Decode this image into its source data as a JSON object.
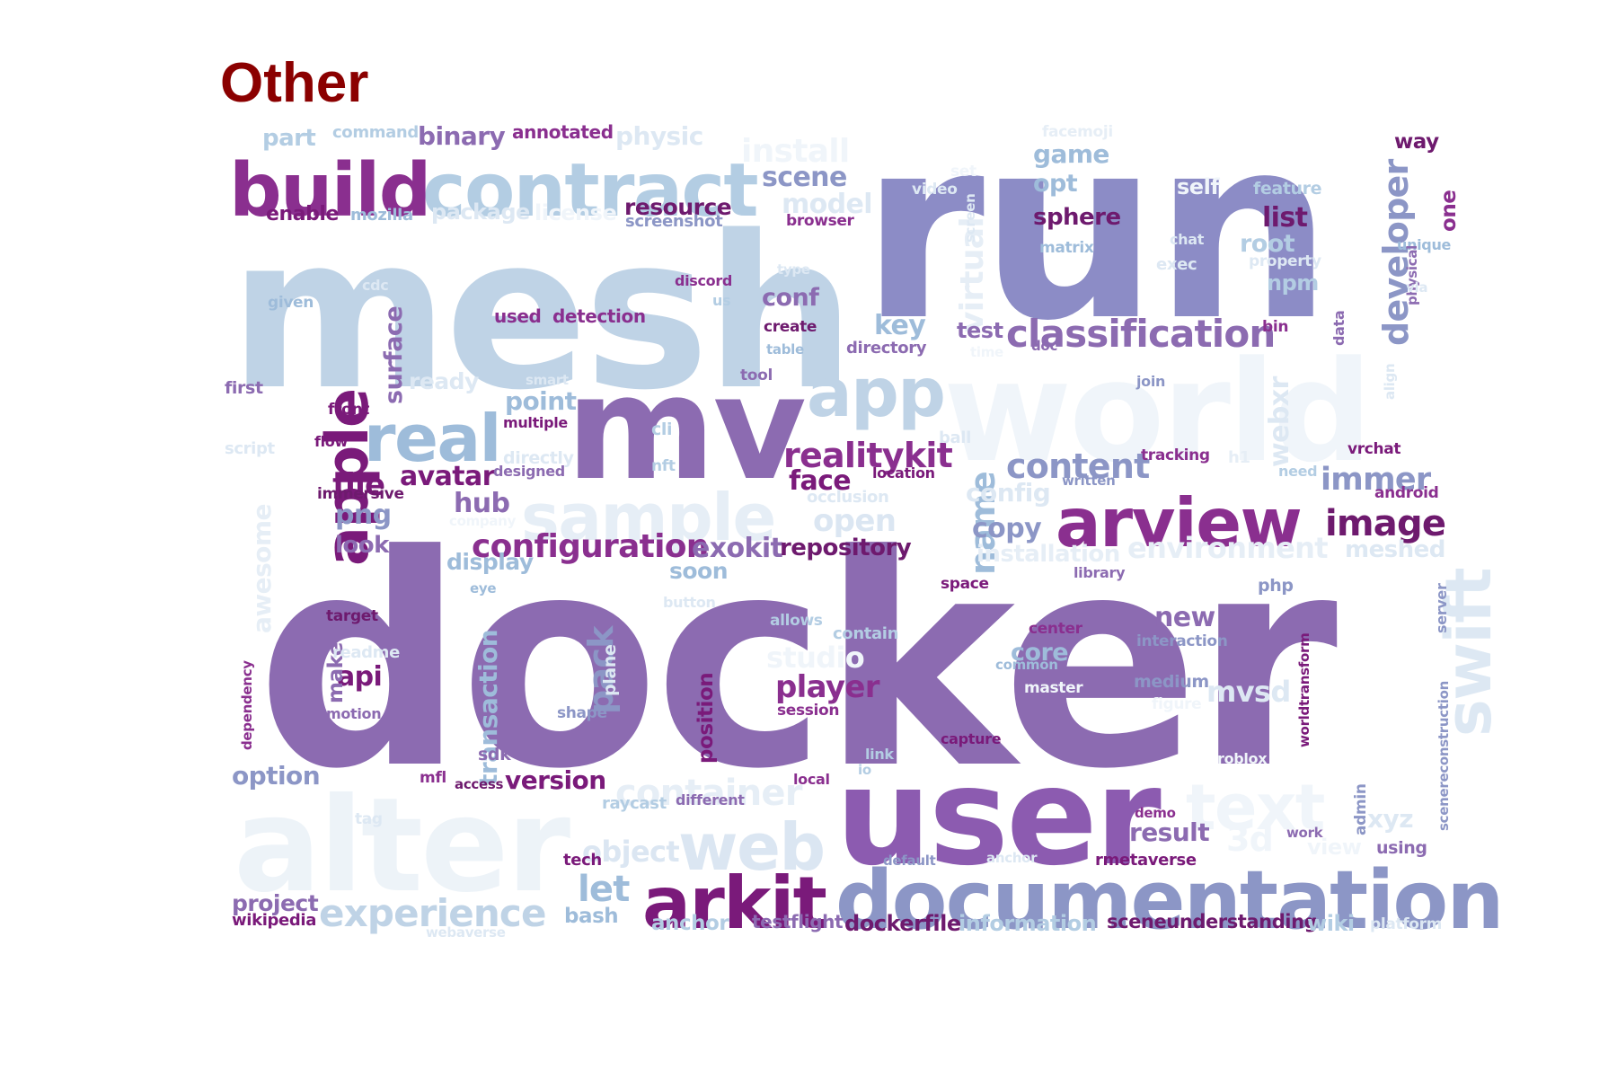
{
  "title": "Other",
  "palette": {
    "title": "#8b0000",
    "dark": "#6e1a6e",
    "purple": "#8a2f8f",
    "violet": "#8c6bb1",
    "lavender": "#8c96c6",
    "light_blue": "#9ebcda",
    "pale": "#bfd3e6",
    "faint": "#e0ecf4"
  },
  "words": [
    {
      "text": "docker",
      "color": "#8c6bb1"
    },
    {
      "text": "run",
      "color": "#8c8cc6"
    },
    {
      "text": "mesh",
      "color": "#bfd3e6"
    },
    {
      "text": "user",
      "color": "#8c5bb0"
    },
    {
      "text": "mv",
      "color": "#8c6bb1"
    },
    {
      "text": "world",
      "color": "#f0f5fa"
    },
    {
      "text": "alter",
      "color": "#edf3f8"
    },
    {
      "text": "documentation",
      "color": "#8c96c6"
    },
    {
      "text": "contract",
      "color": "#b3cde3"
    },
    {
      "text": "build",
      "color": "#8a2f8f"
    },
    {
      "text": "arview",
      "color": "#8a2f8f"
    },
    {
      "text": "sample",
      "color": "#e6eef6"
    },
    {
      "text": "arkit",
      "color": "#7a1a7a"
    },
    {
      "text": "app",
      "color": "#bfd3e6"
    },
    {
      "text": "real",
      "color": "#9ebcda"
    },
    {
      "text": "web",
      "color": "#dbe6f2"
    },
    {
      "text": "swift",
      "color": "#dde8f3"
    },
    {
      "text": "text",
      "color": "#f0f5fa"
    },
    {
      "text": "apple",
      "color": "#7a1a7a"
    },
    {
      "text": "classification",
      "color": "#8c6bb1"
    },
    {
      "text": "experience",
      "color": "#bfd3e6"
    },
    {
      "text": "realitykit",
      "color": "#8a2f8f"
    },
    {
      "text": "image",
      "color": "#6e1a6e"
    },
    {
      "text": "content",
      "color": "#8c96c6"
    },
    {
      "text": "configuration",
      "color": "#8a2f8f"
    },
    {
      "text": "container",
      "color": "#e6eef6"
    },
    {
      "text": "developer",
      "color": "#8c96c6"
    },
    {
      "text": "install",
      "color": "#f0f5fa"
    },
    {
      "text": "immer",
      "color": "#8c96c6"
    },
    {
      "text": "virtual",
      "color": "#e6eef6"
    },
    {
      "text": "environment",
      "color": "#e6eef6"
    },
    {
      "text": "avatar",
      "color": "#7a1a7a"
    },
    {
      "text": "name",
      "color": "#9ebcda"
    },
    {
      "text": "exokit",
      "color": "#8c6bb1"
    },
    {
      "text": "file",
      "color": "#7a1a7a"
    },
    {
      "text": "player",
      "color": "#8a2f8f"
    },
    {
      "text": "open",
      "color": "#dbe6f2"
    },
    {
      "text": "hub",
      "color": "#8c6bb1"
    },
    {
      "text": "face",
      "color": "#7a1a7a"
    },
    {
      "text": "copy",
      "color": "#8c96c6"
    },
    {
      "text": "key",
      "color": "#9ebcda"
    },
    {
      "text": "list",
      "color": "#6e1a6e"
    },
    {
      "text": "object",
      "color": "#dbe6f2"
    },
    {
      "text": "repository",
      "color": "#6e1a6e"
    },
    {
      "text": "pack",
      "color": "#8c96c6"
    },
    {
      "text": "studio",
      "color": "#f0f5fa"
    },
    {
      "text": "version",
      "color": "#7a1a7a"
    },
    {
      "text": "game",
      "color": "#9ebcda"
    },
    {
      "text": "scene",
      "color": "#8c96c6"
    },
    {
      "text": "mvsd",
      "color": "#dde8f3"
    },
    {
      "text": "png",
      "color": "#8c96c6"
    },
    {
      "text": "model",
      "color": "#dde8f3"
    },
    {
      "text": "let",
      "color": "#9ebcda"
    },
    {
      "text": "surface",
      "color": "#8c6bb1"
    },
    {
      "text": "webxr",
      "color": "#dde8f3"
    },
    {
      "text": "new",
      "color": "#8c6bb1"
    },
    {
      "text": "api",
      "color": "#7a1a7a"
    },
    {
      "text": "result",
      "color": "#8c6bb1"
    },
    {
      "text": "point",
      "color": "#9ebcda"
    },
    {
      "text": "binary",
      "color": "#8c6bb1"
    },
    {
      "text": "opt",
      "color": "#9ebcda"
    },
    {
      "text": "core",
      "color": "#9ebcda"
    },
    {
      "text": "sphere",
      "color": "#6e1a6e"
    },
    {
      "text": "resource",
      "color": "#6e1a6e"
    },
    {
      "text": "transaction",
      "color": "#9ebcda"
    },
    {
      "text": "installation",
      "color": "#e6eef6"
    },
    {
      "text": "config",
      "color": "#dde8f3"
    },
    {
      "text": "look",
      "color": "#8c6bb1"
    },
    {
      "text": "physic",
      "color": "#dde8f3"
    },
    {
      "text": "part",
      "color": "#b3cde3"
    },
    {
      "text": "root",
      "color": "#b3cde3"
    },
    {
      "text": "test",
      "color": "#8c6bb1"
    },
    {
      "text": "display",
      "color": "#9ebcda"
    },
    {
      "text": "ready",
      "color": "#dde8f3"
    },
    {
      "text": "position",
      "color": "#7a1a7a"
    },
    {
      "text": "option",
      "color": "#8c96c6"
    },
    {
      "text": "project",
      "color": "#8c6bb1"
    },
    {
      "text": "awesome",
      "color": "#e6eef6"
    },
    {
      "text": "meshed",
      "color": "#dde8f3"
    },
    {
      "text": "xyz",
      "color": "#dde8f3"
    },
    {
      "text": "3d",
      "color": "#f0f5fa"
    },
    {
      "text": "conf",
      "color": "#8c6bb1"
    },
    {
      "text": "soon",
      "color": "#9ebcda"
    },
    {
      "text": "way",
      "color": "#6e1a6e"
    },
    {
      "text": "one",
      "color": "#8a2f8f"
    },
    {
      "text": "npm",
      "color": "#b3cde3"
    },
    {
      "text": "make",
      "color": "#8c6bb1"
    },
    {
      "text": "dockerfile",
      "color": "#6e1a6e"
    },
    {
      "text": "information",
      "color": "#b3cde3"
    },
    {
      "text": "sceneunderstanding",
      "color": "#6e1a6e"
    },
    {
      "text": "wiki",
      "color": "#b3cde3"
    },
    {
      "text": "bash",
      "color": "#9ebcda"
    },
    {
      "text": "anchor",
      "color": "#b3cde3"
    },
    {
      "text": "testflight",
      "color": "#8c6bb1"
    },
    {
      "text": "detection",
      "color": "#8a2f8f"
    },
    {
      "text": "used",
      "color": "#8a2f8f"
    },
    {
      "text": "enable",
      "color": "#7a1a7a"
    },
    {
      "text": "mozilla",
      "color": "#9ebcda"
    },
    {
      "text": "package",
      "color": "#dde8f3"
    },
    {
      "text": "license",
      "color": "#f0f5fa"
    },
    {
      "text": "annotated",
      "color": "#8a2f8f"
    },
    {
      "text": "command",
      "color": "#b3cde3"
    },
    {
      "text": "screenshot",
      "color": "#8c96c6"
    },
    {
      "text": "browser",
      "color": "#8a2f8f"
    },
    {
      "text": "video",
      "color": "#dde8f3"
    },
    {
      "text": "facemoji",
      "color": "#e6eef6"
    },
    {
      "text": "feature",
      "color": "#b3cde3"
    },
    {
      "text": "self",
      "color": "#f0f5fa"
    },
    {
      "text": "matrix",
      "color": "#9ebcda"
    },
    {
      "text": "chat",
      "color": "#dde8f3"
    },
    {
      "text": "exec",
      "color": "#dde8f3"
    },
    {
      "text": "property",
      "color": "#dde8f3"
    },
    {
      "text": "unique",
      "color": "#9ebcda"
    },
    {
      "text": "physical",
      "color": "#8c6bb1"
    },
    {
      "text": "via",
      "color": "#dde8f3"
    },
    {
      "text": "type",
      "color": "#dde8f3"
    },
    {
      "text": "discord",
      "color": "#8a2f8f"
    },
    {
      "text": "us",
      "color": "#b3cde3"
    },
    {
      "text": "create",
      "color": "#6e1a6e"
    },
    {
      "text": "table",
      "color": "#9ebcda"
    },
    {
      "text": "directory",
      "color": "#8c6bb1"
    },
    {
      "text": "time",
      "color": "#f0f5fa"
    },
    {
      "text": "doc",
      "color": "#8c6bb1"
    },
    {
      "text": "bin",
      "color": "#8a2f8f"
    },
    {
      "text": "data",
      "color": "#8c6bb1"
    },
    {
      "text": "align",
      "color": "#dde8f3"
    },
    {
      "text": "join",
      "color": "#8c96c6"
    },
    {
      "text": "given",
      "color": "#9ebcda"
    },
    {
      "text": "cdc",
      "color": "#dde8f3"
    },
    {
      "text": "first",
      "color": "#8c6bb1"
    },
    {
      "text": "front",
      "color": "#7a1a7a"
    },
    {
      "text": "smart",
      "color": "#dde8f3"
    },
    {
      "text": "tool",
      "color": "#8c6bb1"
    },
    {
      "text": "multiple",
      "color": "#7a1a7a"
    },
    {
      "text": "flow",
      "color": "#7a1a7a"
    },
    {
      "text": "script",
      "color": "#dde8f3"
    },
    {
      "text": "cli",
      "color": "#b3cde3"
    },
    {
      "text": "directly",
      "color": "#dde8f3"
    },
    {
      "text": "nft",
      "color": "#b3cde3"
    },
    {
      "text": "designed",
      "color": "#8c6bb1"
    },
    {
      "text": "ball",
      "color": "#dde8f3"
    },
    {
      "text": "location",
      "color": "#7a1a7a"
    },
    {
      "text": "tracking",
      "color": "#8a2f8f"
    },
    {
      "text": "h1",
      "color": "#e6eef6"
    },
    {
      "text": "vrchat",
      "color": "#7a1a7a"
    },
    {
      "text": "need",
      "color": "#b3cde3"
    },
    {
      "text": "written",
      "color": "#8c96c6"
    },
    {
      "text": "android",
      "color": "#8a2f8f"
    },
    {
      "text": "immersive",
      "color": "#6e1a6e"
    },
    {
      "text": "company",
      "color": "#f0f5fa"
    },
    {
      "text": "occlusion",
      "color": "#dde8f3"
    },
    {
      "text": "library",
      "color": "#8c6bb1"
    },
    {
      "text": "php",
      "color": "#8c96c6"
    },
    {
      "text": "eye",
      "color": "#9ebcda"
    },
    {
      "text": "button",
      "color": "#dde8f3"
    },
    {
      "text": "space",
      "color": "#7a1a7a"
    },
    {
      "text": "server",
      "color": "#8c96c6"
    },
    {
      "text": "target",
      "color": "#6e1a6e"
    },
    {
      "text": "allows",
      "color": "#b3cde3"
    },
    {
      "text": "contain",
      "color": "#b3cde3"
    },
    {
      "text": "center",
      "color": "#8a2f8f"
    },
    {
      "text": "interaction",
      "color": "#8c96c6"
    },
    {
      "text": "worldtransform",
      "color": "#7a1a7a"
    },
    {
      "text": "readme",
      "color": "#dde8f3"
    },
    {
      "text": "plane",
      "color": "#dde8f3"
    },
    {
      "text": "common",
      "color": "#9ebcda"
    },
    {
      "text": "master",
      "color": "#f0f5fa"
    },
    {
      "text": "medium",
      "color": "#8c96c6"
    },
    {
      "text": "figure",
      "color": "#f0f5fa"
    },
    {
      "text": "scenereconstruction",
      "color": "#8c96c6"
    },
    {
      "text": "dependency",
      "color": "#8a2f8f"
    },
    {
      "text": "motion",
      "color": "#8c6bb1"
    },
    {
      "text": "shape",
      "color": "#8c96c6"
    },
    {
      "text": "session",
      "color": "#8a2f8f"
    },
    {
      "text": "capture",
      "color": "#7a1a7a"
    },
    {
      "text": "link",
      "color": "#b3cde3"
    },
    {
      "text": "io",
      "color": "#b3cde3"
    },
    {
      "text": "roblox",
      "color": "#f0f5fa"
    },
    {
      "text": "admin",
      "color": "#8c96c6"
    },
    {
      "text": "mfl",
      "color": "#8a2f8f"
    },
    {
      "text": "access",
      "color": "#6e1a6e"
    },
    {
      "text": "sdk",
      "color": "#8c6bb1"
    },
    {
      "text": "local",
      "color": "#8a2f8f"
    },
    {
      "text": "raycast",
      "color": "#b3cde3"
    },
    {
      "text": "different",
      "color": "#8c6bb1"
    },
    {
      "text": "tag",
      "color": "#dde8f3"
    },
    {
      "text": "demo",
      "color": "#8a2f8f"
    },
    {
      "text": "work",
      "color": "#8c6bb1"
    },
    {
      "text": "view",
      "color": "#f0f5fa"
    },
    {
      "text": "using",
      "color": "#8c6bb1"
    },
    {
      "text": "tech",
      "color": "#7a1a7a"
    },
    {
      "text": "default",
      "color": "#8c96c6"
    },
    {
      "text": "anchor",
      "color": "#dde8f3"
    },
    {
      "text": "rmetaverse",
      "color": "#7a1a7a"
    },
    {
      "text": "wikipedia",
      "color": "#7a1a7a"
    },
    {
      "text": "webaverse",
      "color": "#dde8f3"
    },
    {
      "text": "platform",
      "color": "#dde8f3"
    },
    {
      "text": "set",
      "color": "#f0f5fa"
    },
    {
      "text": "screen",
      "color": "#dde8f3"
    }
  ]
}
